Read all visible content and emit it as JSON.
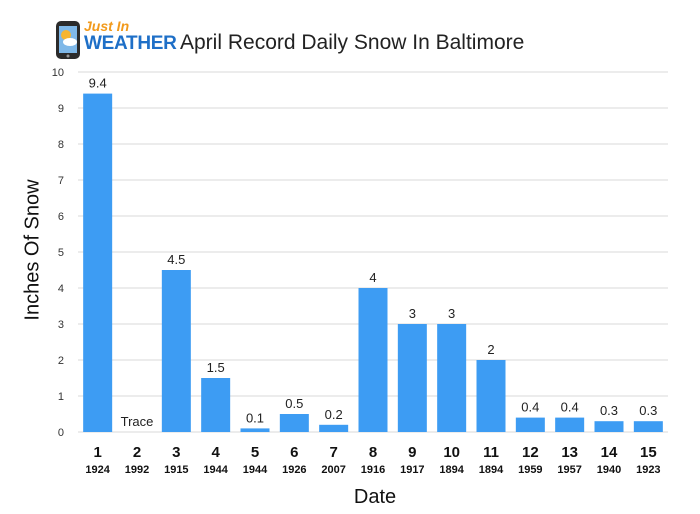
{
  "logo": {
    "line1": "Just In",
    "line2": "WEATHER"
  },
  "chart_data": {
    "type": "bar",
    "title": "April Record Daily Snow In Baltimore",
    "xlabel": "Date",
    "ylabel": "Inches Of Snow",
    "ylim": [
      0,
      10
    ],
    "yticks": [
      0,
      1,
      2,
      3,
      4,
      5,
      6,
      7,
      8,
      9,
      10
    ],
    "grid": true,
    "categories": [
      "1",
      "2",
      "3",
      "4",
      "5",
      "6",
      "7",
      "8",
      "9",
      "10",
      "11",
      "12",
      "13",
      "14",
      "15"
    ],
    "years": [
      "1924",
      "1992",
      "1915",
      "1944",
      "1944",
      "1926",
      "2007",
      "1916",
      "1917",
      "1894",
      "1894",
      "1959",
      "1957",
      "1940",
      "1923"
    ],
    "values": [
      9.4,
      0,
      4.5,
      1.5,
      0.1,
      0.5,
      0.2,
      4,
      3,
      3,
      2,
      0.4,
      0.4,
      0.3,
      0.3
    ],
    "data_labels": [
      "9.4",
      "Trace",
      "4.5",
      "1.5",
      "0.1",
      "0.5",
      "0.2",
      "4",
      "3",
      "3",
      "2",
      "0.4",
      "0.4",
      "0.3",
      "0.3"
    ],
    "bar_color": "#3d9cf3",
    "grid_color": "#d9d9d9"
  }
}
